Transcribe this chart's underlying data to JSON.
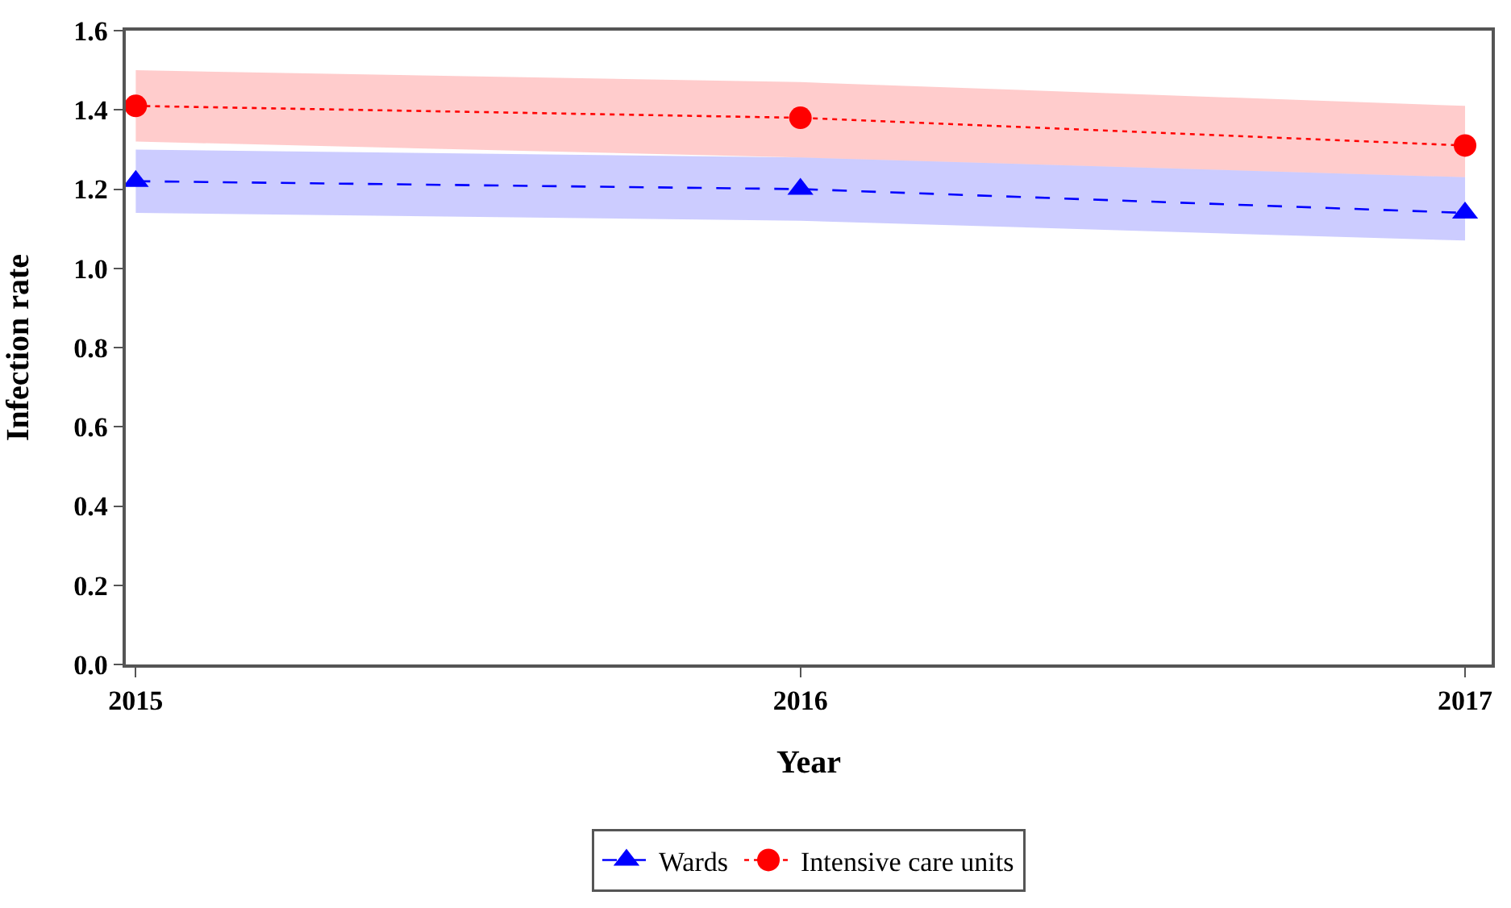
{
  "chart_data": {
    "type": "line",
    "xlabel": "Year",
    "ylabel": "Infection rate",
    "x": [
      2015,
      2016,
      2017
    ],
    "xlim": [
      2014.985,
      2017.04
    ],
    "xticks": [
      2015,
      2016,
      2017
    ],
    "ylim": [
      0,
      1.6
    ],
    "yticks": [
      {
        "value": 0,
        "label": "0.0"
      },
      0.2,
      0.4,
      0.6,
      0.8,
      {
        "value": 1,
        "label": "1.0"
      },
      1.2,
      1.4,
      1.6
    ],
    "grid": false,
    "legend": "bottom",
    "series": [
      {
        "name": "Intensive care units",
        "color": "#ff0000",
        "marker": "circle",
        "line_style": "dotted",
        "values": [
          1.41,
          1.38,
          1.31
        ],
        "lower": [
          1.32,
          1.28,
          1.23
        ],
        "upper": [
          1.5,
          1.47,
          1.41
        ]
      },
      {
        "name": "Wards",
        "color": "#0000ff",
        "marker": "triangle",
        "line_style": "dashed",
        "values": [
          1.22,
          1.2,
          1.14
        ],
        "lower": [
          1.14,
          1.12,
          1.07
        ],
        "upper": [
          1.3,
          1.28,
          1.23
        ]
      }
    ]
  }
}
